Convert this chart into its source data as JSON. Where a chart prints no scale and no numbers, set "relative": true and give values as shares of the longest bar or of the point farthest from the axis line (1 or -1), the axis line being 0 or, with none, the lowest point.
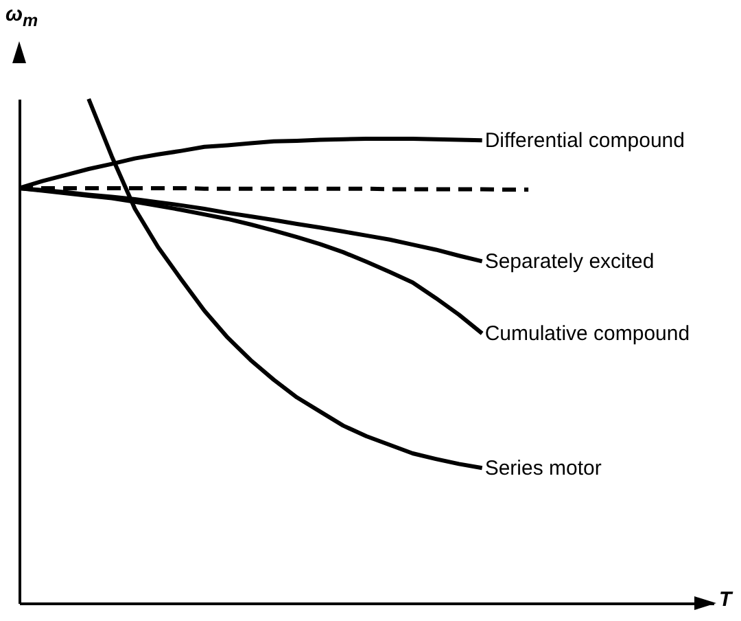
{
  "chart_data": {
    "type": "line",
    "relative": true,
    "xlabel": "T",
    "ylabel": "ω$_{m}$",
    "grid": false,
    "legend": false,
    "marker": "none",
    "categories": [
      null,
      null,
      null,
      null,
      null,
      null,
      null,
      null,
      null,
      null,
      null,
      null,
      null,
      null,
      null,
      null,
      null,
      null,
      null,
      null,
      null,
      null,
      null,
      null,
      null,
      null,
      null,
      null,
      null,
      null,
      null
    ],
    "series": [
      {
        "name": "Differential compound",
        "color": "#000000",
        "values": [
          0.823,
          0.837,
          0.849,
          0.861,
          0.871,
          0.882,
          0.89,
          0.897,
          0.905,
          0.908,
          0.912,
          0.916,
          0.917,
          0.919,
          0.92,
          0.921,
          0.921,
          0.921,
          0.92,
          0.919,
          0.918,
          null,
          null,
          null,
          null,
          null,
          null,
          null,
          null,
          null,
          null
        ]
      },
      {
        "color": "#000000",
        "line_style": "dashed",
        "values": [
          0.823,
          0.823,
          0.823,
          0.823,
          0.823,
          0.823,
          0.823,
          0.823,
          0.822,
          0.822,
          0.822,
          0.822,
          0.822,
          0.822,
          0.822,
          0.822,
          0.821,
          0.821,
          0.821,
          0.821,
          0.821,
          0.82,
          0.82,
          null,
          null,
          null,
          null,
          null,
          null,
          null,
          null
        ]
      },
      {
        "name": "Separately excited",
        "color": "#000000",
        "values": [
          0.823,
          0.819,
          0.815,
          0.81,
          0.806,
          0.801,
          0.795,
          0.789,
          0.782,
          0.774,
          0.767,
          0.76,
          0.752,
          0.745,
          0.737,
          0.729,
          0.721,
          0.711,
          0.701,
          0.689,
          0.678,
          null,
          null,
          null,
          null,
          null,
          null,
          null,
          null,
          null,
          null
        ]
      },
      {
        "name": "Cumulative compound",
        "color": "#000000",
        "values": [
          0.823,
          0.818,
          0.813,
          0.808,
          0.803,
          0.796,
          0.788,
          0.78,
          0.771,
          0.762,
          0.751,
          0.739,
          0.726,
          0.712,
          0.696,
          0.677,
          0.657,
          0.636,
          0.605,
          0.572,
          0.535,
          null,
          null,
          null,
          null,
          null,
          null,
          null,
          null,
          null,
          null
        ]
      },
      {
        "name": "Series motor",
        "color": "#000000",
        "values": [
          null,
          null,
          null,
          1,
          0.886,
          0.782,
          0.706,
          0.642,
          0.58,
          0.527,
          0.482,
          0.443,
          0.408,
          0.38,
          0.352,
          0.331,
          0.314,
          0.297,
          0.286,
          0.276,
          0.268,
          null,
          null,
          null,
          null,
          null,
          null,
          null,
          null,
          null,
          null
        ]
      }
    ]
  }
}
